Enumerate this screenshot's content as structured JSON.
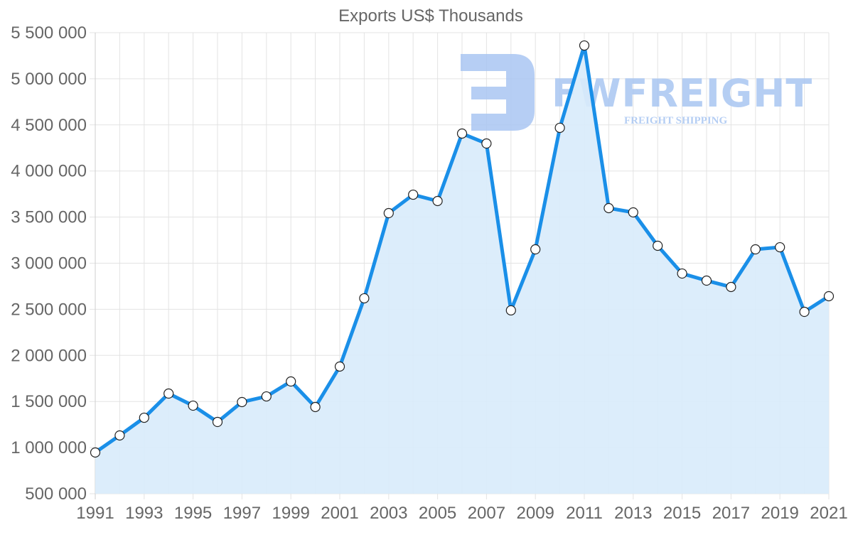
{
  "chart_data": {
    "type": "line",
    "title": "Exports US$ Thousands",
    "xlabel": "",
    "ylabel": "",
    "x": [
      1991,
      1992,
      1993,
      1994,
      1995,
      1996,
      1997,
      1998,
      1999,
      2000,
      2001,
      2002,
      2003,
      2004,
      2005,
      2006,
      2007,
      2008,
      2009,
      2010,
      2011,
      2012,
      2013,
      2014,
      2015,
      2016,
      2017,
      2018,
      2019,
      2020,
      2021
    ],
    "x_tick_labels": [
      "1991",
      "1993",
      "1995",
      "1997",
      "1999",
      "2001",
      "2003",
      "2005",
      "2007",
      "2009",
      "2011",
      "2013",
      "2015",
      "2017",
      "2019",
      "2021"
    ],
    "series": [
      {
        "name": "Exports US$ Thousands",
        "color": "#1a8fe8",
        "fill": "#d8ebfb",
        "values": [
          947000,
          1132000,
          1324000,
          1586000,
          1455000,
          1278000,
          1494000,
          1555000,
          1717000,
          1440000,
          1879000,
          2619000,
          3543000,
          3743000,
          3674000,
          4406000,
          4298000,
          2488000,
          3150000,
          4468000,
          5361000,
          3597000,
          3551000,
          3189000,
          2888000,
          2811000,
          2742000,
          3150000,
          3173000,
          2472000,
          2642000
        ]
      }
    ],
    "ylim": [
      500000,
      5500000
    ],
    "y_ticks": [
      500000,
      1000000,
      1500000,
      2000000,
      2500000,
      3000000,
      3500000,
      4000000,
      4500000,
      5000000,
      5500000
    ],
    "y_tick_labels": [
      "500 000",
      "1 000 000",
      "1 500 000",
      "2 000 000",
      "2 500 000",
      "3 000 000",
      "3 500 000",
      "4 000 000",
      "4 500 000",
      "5 000 000",
      "5 500 000"
    ],
    "grid": true,
    "legend": "none",
    "area_fill": true
  },
  "watermark": {
    "brand": "FWFREIGHT",
    "tagline": "FREIGHT SHIPPING",
    "color": "#a9c6f2"
  },
  "colors": {
    "line": "#1a8fe8",
    "fill": "#d8ebfb",
    "grid": "#e3e3e3",
    "text": "#666666"
  }
}
